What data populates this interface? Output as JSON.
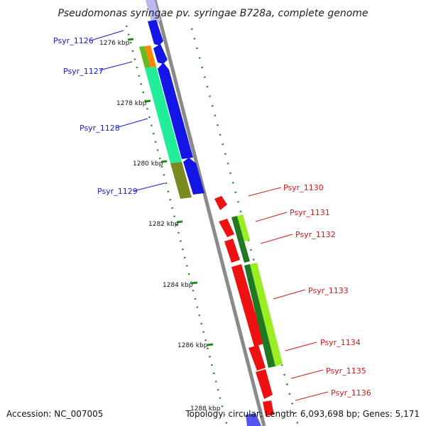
{
  "title": "Pseudomonas syringae pv. syringae B728a, complete genome",
  "footer": {
    "accession": "Accession: NC_007005",
    "topology": "Topology: circular; Length: 6,093,698 bp; Genes: 5,171"
  },
  "colors": {
    "backbone": "#8a8a8a",
    "tick": "#1f8a1f",
    "left_label": "#1a1acc",
    "right_label": "#cc1a1a"
  },
  "kbp_ticks": [
    {
      "label": "1276 kbp"
    },
    {
      "label": "1278 kbp"
    },
    {
      "label": "1280 kbp"
    },
    {
      "label": "1282 kbp"
    },
    {
      "label": "1284 kbp"
    },
    {
      "label": "1286 kbp"
    },
    {
      "label": "1288 kbp"
    }
  ],
  "genes_left": [
    {
      "name": "Psyr_1126"
    },
    {
      "name": "Psyr_1127"
    },
    {
      "name": "Psyr_1128"
    },
    {
      "name": "Psyr_1129"
    }
  ],
  "genes_right": [
    {
      "name": "Psyr_1130"
    },
    {
      "name": "Psyr_1131"
    },
    {
      "name": "Psyr_1132"
    },
    {
      "name": "Psyr_1133"
    },
    {
      "name": "Psyr_1134"
    },
    {
      "name": "Psyr_1135"
    },
    {
      "name": "Psyr_1136"
    }
  ]
}
